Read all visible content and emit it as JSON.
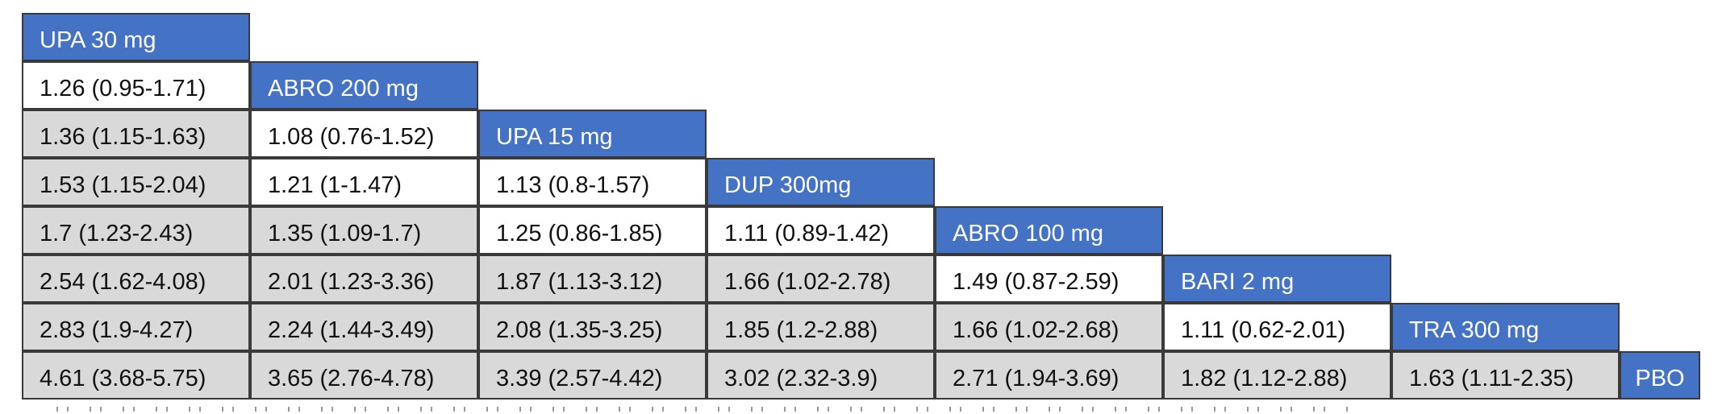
{
  "colors": {
    "header_blue": "#4472C4",
    "shaded_cell_gray": "#D9D9D9",
    "unshaded_cell_white": "#FFFFFF",
    "border": "#3A3A3A",
    "header_text": "#FFFFFF",
    "value_text": "#111111",
    "page_background": "#FFFFFF"
  },
  "chart_data": {
    "type": "table",
    "layout": "lower-triangle league table; diagonal cells are treatment names; each cell shows estimate (95% CI); gray shading = confidence interval excludes 1, white = interval includes 1",
    "treatments": [
      "UPA 30 mg",
      "ABRO 200 mg",
      "UPA 15 mg",
      "DUP 300mg",
      "ABRO 100 mg",
      "BARI 2 mg",
      "TRA 300 mg",
      "PBO"
    ],
    "rows": [
      {
        "treatment": "UPA 30 mg",
        "cells": []
      },
      {
        "treatment": "ABRO 200 mg",
        "cells": [
          {
            "display": "1.26 (0.95-1.71)",
            "estimate": 1.26,
            "ci_lower": 0.95,
            "ci_upper": 1.71,
            "shaded": false
          }
        ]
      },
      {
        "treatment": "UPA 15 mg",
        "cells": [
          {
            "display": "1.36 (1.15-1.63)",
            "estimate": 1.36,
            "ci_lower": 1.15,
            "ci_upper": 1.63,
            "shaded": true
          },
          {
            "display": "1.08 (0.76-1.52)",
            "estimate": 1.08,
            "ci_lower": 0.76,
            "ci_upper": 1.52,
            "shaded": false
          }
        ]
      },
      {
        "treatment": "DUP 300mg",
        "cells": [
          {
            "display": "1.53 (1.15-2.04)",
            "estimate": 1.53,
            "ci_lower": 1.15,
            "ci_upper": 2.04,
            "shaded": true
          },
          {
            "display": "1.21 (1-1.47)",
            "estimate": 1.21,
            "ci_lower": 1,
            "ci_upper": 1.47,
            "shaded": false
          },
          {
            "display": "1.13 (0.8-1.57)",
            "estimate": 1.13,
            "ci_lower": 0.8,
            "ci_upper": 1.57,
            "shaded": false
          }
        ]
      },
      {
        "treatment": "ABRO 100 mg",
        "cells": [
          {
            "display": "1.7 (1.23-2.43)",
            "estimate": 1.7,
            "ci_lower": 1.23,
            "ci_upper": 2.43,
            "shaded": true
          },
          {
            "display": "1.35 (1.09-1.7)",
            "estimate": 1.35,
            "ci_lower": 1.09,
            "ci_upper": 1.7,
            "shaded": true
          },
          {
            "display": "1.25 (0.86-1.85)",
            "estimate": 1.25,
            "ci_lower": 0.86,
            "ci_upper": 1.85,
            "shaded": false
          },
          {
            "display": "1.11 (0.89-1.42)",
            "estimate": 1.11,
            "ci_lower": 0.89,
            "ci_upper": 1.42,
            "shaded": false
          }
        ]
      },
      {
        "treatment": "BARI 2 mg",
        "cells": [
          {
            "display": "2.54 (1.62-4.08)",
            "estimate": 2.54,
            "ci_lower": 1.62,
            "ci_upper": 4.08,
            "shaded": true
          },
          {
            "display": "2.01 (1.23-3.36)",
            "estimate": 2.01,
            "ci_lower": 1.23,
            "ci_upper": 3.36,
            "shaded": true
          },
          {
            "display": "1.87 (1.13-3.12)",
            "estimate": 1.87,
            "ci_lower": 1.13,
            "ci_upper": 3.12,
            "shaded": true
          },
          {
            "display": "1.66 (1.02-2.78)",
            "estimate": 1.66,
            "ci_lower": 1.02,
            "ci_upper": 2.78,
            "shaded": true
          },
          {
            "display": "1.49 (0.87-2.59)",
            "estimate": 1.49,
            "ci_lower": 0.87,
            "ci_upper": 2.59,
            "shaded": false
          }
        ]
      },
      {
        "treatment": "TRA 300 mg",
        "cells": [
          {
            "display": "2.83 (1.9-4.27)",
            "estimate": 2.83,
            "ci_lower": 1.9,
            "ci_upper": 4.27,
            "shaded": true
          },
          {
            "display": "2.24 (1.44-3.49)",
            "estimate": 2.24,
            "ci_lower": 1.44,
            "ci_upper": 3.49,
            "shaded": true
          },
          {
            "display": "2.08 (1.35-3.25)",
            "estimate": 2.08,
            "ci_lower": 1.35,
            "ci_upper": 3.25,
            "shaded": true
          },
          {
            "display": "1.85 (1.2-2.88)",
            "estimate": 1.85,
            "ci_lower": 1.2,
            "ci_upper": 2.88,
            "shaded": true
          },
          {
            "display": "1.66 (1.02-2.68)",
            "estimate": 1.66,
            "ci_lower": 1.02,
            "ci_upper": 2.68,
            "shaded": true
          },
          {
            "display": "1.11 (0.62-2.01)",
            "estimate": 1.11,
            "ci_lower": 0.62,
            "ci_upper": 2.01,
            "shaded": false
          }
        ]
      },
      {
        "treatment": "PBO",
        "cells": [
          {
            "display": "4.61 (3.68-5.75)",
            "estimate": 4.61,
            "ci_lower": 3.68,
            "ci_upper": 5.75,
            "shaded": true
          },
          {
            "display": "3.65 (2.76-4.78)",
            "estimate": 3.65,
            "ci_lower": 2.76,
            "ci_upper": 4.78,
            "shaded": true
          },
          {
            "display": "3.39 (2.57-4.42)",
            "estimate": 3.39,
            "ci_lower": 2.57,
            "ci_upper": 4.42,
            "shaded": true
          },
          {
            "display": "3.02 (2.32-3.9)",
            "estimate": 3.02,
            "ci_lower": 2.32,
            "ci_upper": 3.9,
            "shaded": true
          },
          {
            "display": "2.71 (1.94-3.69)",
            "estimate": 2.71,
            "ci_lower": 1.94,
            "ci_upper": 3.69,
            "shaded": true
          },
          {
            "display": "1.82 (1.12-2.88)",
            "estimate": 1.82,
            "ci_lower": 1.12,
            "ci_upper": 2.88,
            "shaded": true
          },
          {
            "display": "1.63 (1.11-2.35)",
            "estimate": 1.63,
            "ci_lower": 1.11,
            "ci_upper": 2.35,
            "shaded": true
          }
        ]
      }
    ]
  }
}
